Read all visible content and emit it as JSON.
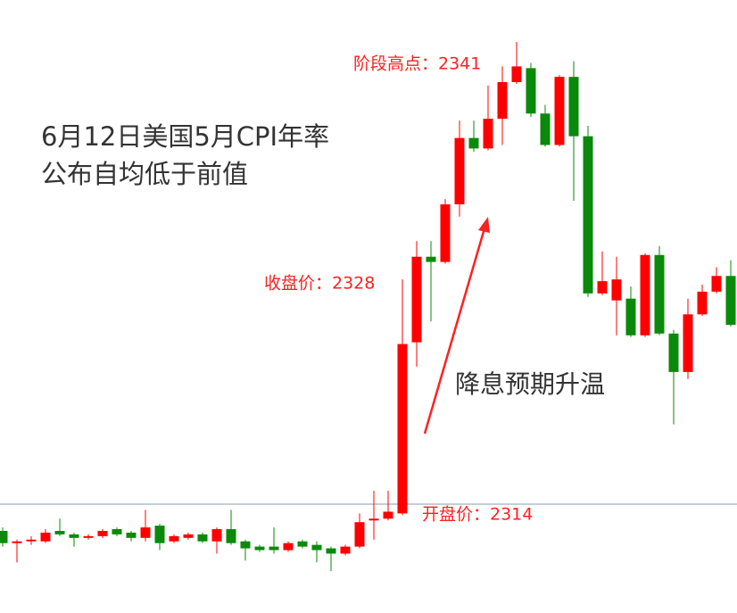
{
  "chart_data": {
    "type": "candlestick",
    "title": [
      "6月12日美国5月CPI年率",
      "公布自均低于前值"
    ],
    "annotations": [
      "阶段高点：2341",
      "收盘价：2328",
      "开盘价：2314",
      "降息预期升温"
    ],
    "up_color": "#ff0000",
    "down_color": "#0a8a0a",
    "open": [
      2313.0,
      2312.3,
      2312.4,
      2312.4,
      2313.0,
      2312.8,
      2312.6,
      2312.7,
      2313.1,
      2312.9,
      2312.6,
      2313.3,
      2312.4,
      2312.6,
      2312.8,
      2312.4,
      2313.1,
      2312.4,
      2312.1,
      2312.1,
      2311.9,
      2312.4,
      2312.2,
      2312.0,
      2311.7,
      2312.1,
      2313.6,
      2313.7,
      2314.0,
      2323.8,
      2328.7,
      2328.4,
      2331.7,
      2335.5,
      2334.9,
      2336.6,
      2338.7,
      2339.5,
      2336.9,
      2335.1,
      2339.0,
      2335.6,
      2326.6,
      2326.2,
      2326.3,
      2324.2,
      2328.8,
      2324.3,
      2322.1,
      2325.4,
      2326.7,
      2327.6
    ],
    "high": [
      2313.2,
      2312.5,
      2312.7,
      2313.1,
      2313.7,
      2312.9,
      2312.8,
      2313.1,
      2313.2,
      2313.0,
      2314.2,
      2313.4,
      2312.8,
      2312.9,
      2312.9,
      2313.2,
      2314.2,
      2312.5,
      2312.2,
      2313.2,
      2312.4,
      2312.5,
      2312.4,
      2312.1,
      2312.2,
      2314.0,
      2315.3,
      2315.3,
      2327.4,
      2329.6,
      2329.6,
      2332.0,
      2336.5,
      2336.5,
      2338.5,
      2339.6,
      2341.0,
      2339.8,
      2337.4,
      2339.1,
      2339.9,
      2336.2,
      2329.0,
      2328.7,
      2327.0,
      2328.9,
      2329.3,
      2324.5,
      2326.3,
      2327.1,
      2328.1,
      2328.5
    ],
    "low": [
      2312.1,
      2311.2,
      2312.2,
      2312.3,
      2312.7,
      2312.1,
      2312.5,
      2312.6,
      2312.7,
      2312.4,
      2312.4,
      2311.9,
      2312.3,
      2312.5,
      2312.3,
      2311.7,
      2312.2,
      2311.3,
      2311.8,
      2311.7,
      2311.8,
      2312.0,
      2311.2,
      2310.7,
      2311.6,
      2312.0,
      2312.5,
      2313.6,
      2313.9,
      2322.4,
      2325.0,
      2328.3,
      2331.0,
      2334.7,
      2334.8,
      2335.1,
      2338.6,
      2336.7,
      2335.0,
      2335.0,
      2331.9,
      2326.4,
      2326.5,
      2324.2,
      2324.1,
      2324.1,
      2324.2,
      2319.1,
      2321.7,
      2325.3,
      2326.6,
      2324.7
    ],
    "close": [
      2312.3,
      2312.4,
      2312.5,
      2312.9,
      2312.8,
      2312.6,
      2312.7,
      2313.0,
      2312.8,
      2312.6,
      2313.2,
      2312.3,
      2312.7,
      2312.8,
      2312.4,
      2313.1,
      2312.3,
      2312.0,
      2311.9,
      2311.9,
      2312.3,
      2312.1,
      2311.9,
      2311.7,
      2312.1,
      2313.5,
      2313.7,
      2314.1,
      2323.7,
      2328.7,
      2328.4,
      2331.7,
      2335.5,
      2334.9,
      2336.6,
      2338.7,
      2339.6,
      2336.9,
      2335.1,
      2339.0,
      2335.6,
      2326.6,
      2327.3,
      2327.4,
      2324.2,
      2328.8,
      2324.3,
      2322.1,
      2325.4,
      2326.7,
      2327.6,
      2324.8
    ]
  }
}
